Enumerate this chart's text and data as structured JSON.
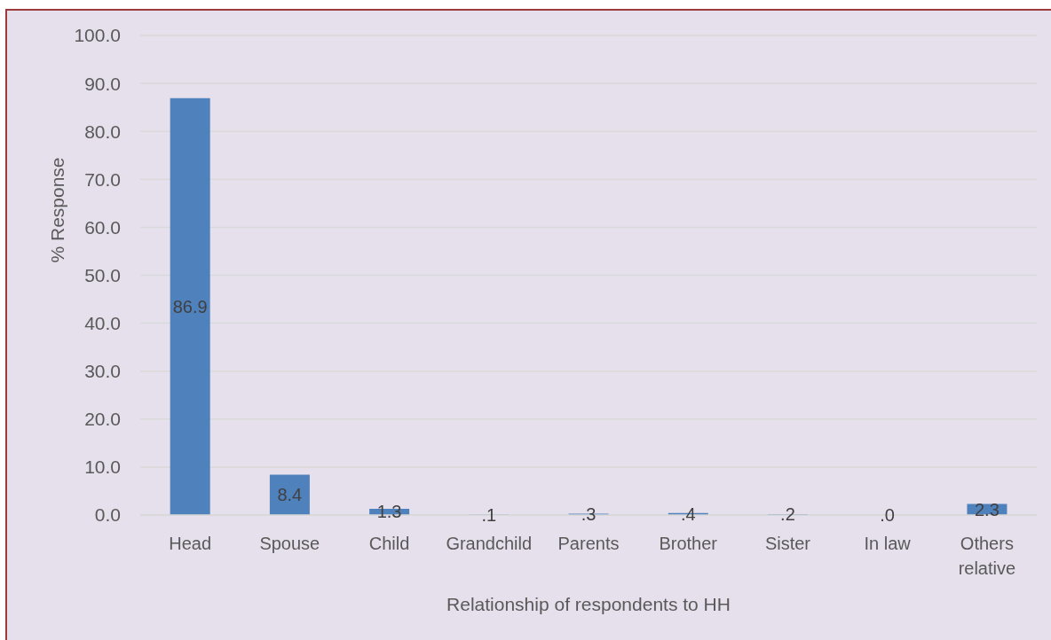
{
  "chart_data": {
    "type": "bar",
    "xlabel": "Relationship of respondents to HH",
    "ylabel": "% Response",
    "categories": [
      "Head",
      "Spouse",
      "Child",
      "Grandchild",
      "Parents",
      "Brother",
      "Sister",
      "In law",
      "Others relative"
    ],
    "values": [
      86.9,
      8.4,
      1.3,
      0.1,
      0.3,
      0.4,
      0.2,
      0.0,
      2.3
    ],
    "value_labels": [
      "86.9",
      "8.4",
      "1.3",
      ".1",
      ".3",
      ".4",
      ".2",
      ".0",
      "2.3"
    ],
    "color": "#4f81bd",
    "ylim": [
      0,
      100
    ],
    "yticks": [
      {
        "value": 0,
        "label": "0.0"
      },
      {
        "value": 10,
        "label": "10.0"
      },
      {
        "value": 20,
        "label": "20.0"
      },
      {
        "value": 30,
        "label": "30.0"
      },
      {
        "value": 40,
        "label": "40.0"
      },
      {
        "value": 50,
        "label": "50.0"
      },
      {
        "value": 60,
        "label": "60.0"
      },
      {
        "value": 70,
        "label": "70.0"
      },
      {
        "value": 80,
        "label": "80.0"
      },
      {
        "value": 90,
        "label": "90.0"
      },
      {
        "value": 100,
        "label": "100.0"
      }
    ],
    "grid": "y"
  }
}
